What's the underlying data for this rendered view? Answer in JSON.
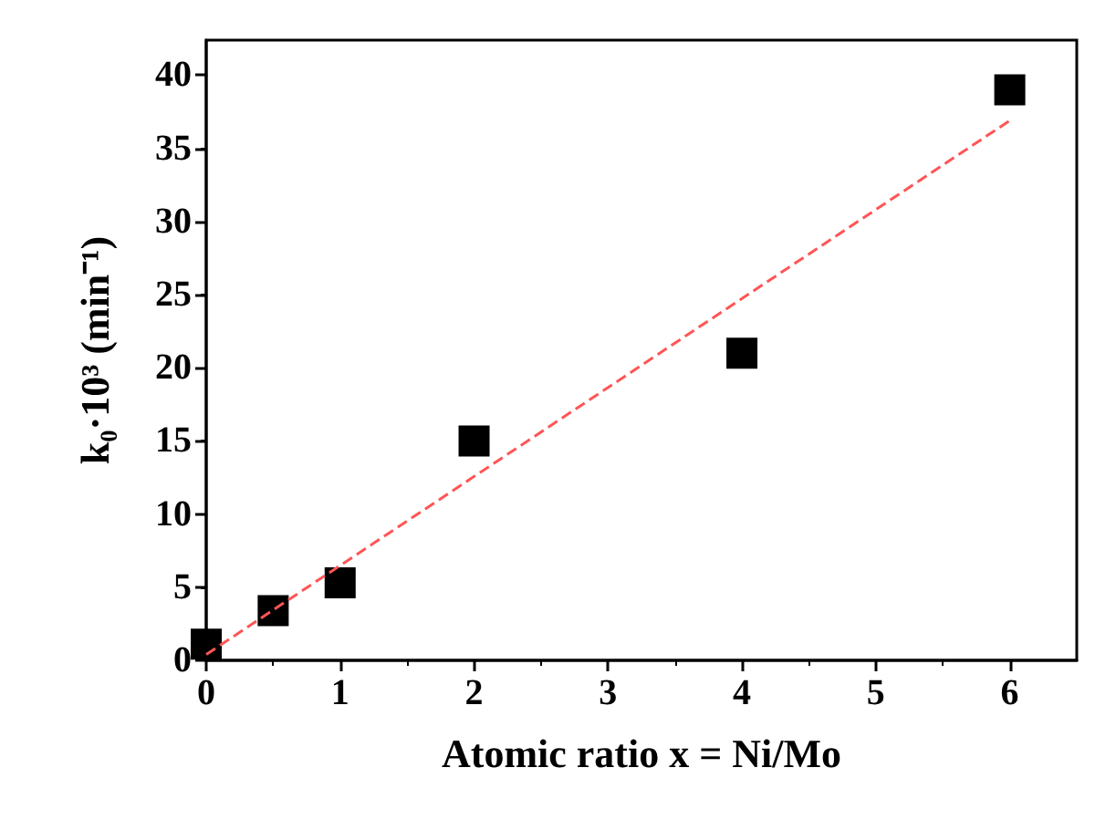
{
  "chart_data": {
    "type": "scatter",
    "xlabel": "Atomic ratio x = Ni/Mo",
    "ylabel": "k₀·10³ (min⁻¹)",
    "xlim": [
      0,
      6.5
    ],
    "ylim": [
      0,
      42.4
    ],
    "xticks": [
      0,
      1,
      2,
      3,
      4,
      5,
      6
    ],
    "yticks": [
      0,
      5,
      10,
      15,
      20,
      25,
      30,
      35,
      40
    ],
    "marker": "square",
    "series": [
      {
        "color": "#000000",
        "x": [
          0,
          0.5,
          1,
          2,
          4,
          6
        ],
        "values": [
          1.1,
          3.4,
          5.3,
          15,
          21,
          39
        ]
      },
      {
        "type": "line",
        "color": "#ff5555",
        "line_style": "dashed",
        "marker": "none",
        "x": [
          0,
          6
        ],
        "values": [
          0.4,
          36.9
        ]
      }
    ]
  }
}
